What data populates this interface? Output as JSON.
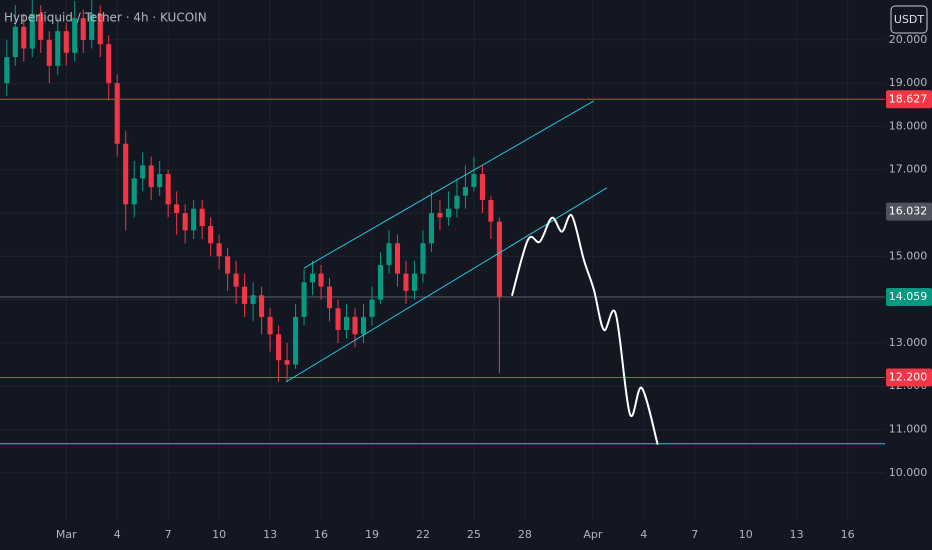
{
  "chart_data": {
    "type": "candlestick",
    "title": "Hyperliquid / Tether · 4h · KUCOIN",
    "currency": "USDT",
    "up_color": "#089981",
    "down_color": "#f23645",
    "grid": true,
    "xlim": [
      -2.9,
      49.2
    ],
    "ylim": [
      8.91,
      20.92
    ],
    "xticks": [
      {
        "value": 1,
        "label": "Mar"
      },
      4,
      7,
      10,
      13,
      16,
      19,
      22,
      25,
      28,
      {
        "value": 32,
        "label": "Apr"
      },
      {
        "value": 35,
        "label": "4"
      },
      {
        "value": 38,
        "label": "7"
      },
      {
        "value": 41,
        "label": "10"
      },
      {
        "value": 44,
        "label": "13"
      },
      {
        "value": 47,
        "label": "16"
      }
    ],
    "yticks": [
      {
        "value": 10,
        "label": "10.000"
      },
      {
        "value": 11,
        "label": "11.000"
      },
      {
        "value": 12,
        "label": "12.000"
      },
      {
        "value": 13,
        "label": "13.000"
      },
      {
        "value": 14,
        "label": "14.000"
      },
      {
        "value": 15,
        "label": "15.000"
      },
      {
        "value": 16,
        "label": "16.000"
      },
      {
        "value": 17,
        "label": "17.000"
      },
      {
        "value": 18,
        "label": "18.000"
      },
      {
        "value": 19,
        "label": "19.000"
      },
      {
        "value": 20,
        "label": "20.000"
      }
    ],
    "x": [
      -2.5,
      -2,
      -1.5,
      -1,
      -0.5,
      0,
      0.5,
      1,
      1.5,
      2,
      2.5,
      3,
      3.5,
      4,
      4.5,
      5,
      5.5,
      6,
      6.5,
      7,
      7.5,
      8,
      8.5,
      9,
      9.5,
      10,
      10.5,
      11,
      11.5,
      12,
      12.5,
      13,
      13.5,
      14,
      14.5,
      15,
      15.5,
      16,
      16.5,
      17,
      17.5,
      18,
      18.5,
      19,
      19.5,
      20,
      20.5,
      21,
      21.5,
      22,
      22.5,
      23,
      23.5,
      24,
      24.5,
      25,
      25.5,
      26,
      26.5
    ],
    "open": [
      19.0,
      19.6,
      20.3,
      19.8,
      20.6,
      20.0,
      19.4,
      20.2,
      19.7,
      20.5,
      20.0,
      20.6,
      19.9,
      19.0,
      17.6,
      16.2,
      16.8,
      17.1,
      16.6,
      16.9,
      16.2,
      16.0,
      15.6,
      16.1,
      15.7,
      15.3,
      15.0,
      14.6,
      14.3,
      13.9,
      14.1,
      13.6,
      13.2,
      12.6,
      12.5,
      13.6,
      14.4,
      14.6,
      14.3,
      13.8,
      13.3,
      13.6,
      13.2,
      13.6,
      14.0,
      14.8,
      15.3,
      14.6,
      14.2,
      14.6,
      15.3,
      16.0,
      15.9,
      16.1,
      16.4,
      16.6,
      16.9,
      16.3,
      15.8
    ],
    "high": [
      20.0,
      20.8,
      20.6,
      21.0,
      20.8,
      20.2,
      20.5,
      20.4,
      20.9,
      20.7,
      21.0,
      20.8,
      20.1,
      19.2,
      17.9,
      17.2,
      17.4,
      17.3,
      17.2,
      17.0,
      16.5,
      16.2,
      16.3,
      16.3,
      15.9,
      15.5,
      15.2,
      14.9,
      14.6,
      14.4,
      14.3,
      13.8,
      13.4,
      13.0,
      13.9,
      14.7,
      14.9,
      14.8,
      14.5,
      14.0,
      13.9,
      13.8,
      13.9,
      14.3,
      15.1,
      15.6,
      15.5,
      14.9,
      14.9,
      15.6,
      16.5,
      16.3,
      16.5,
      16.8,
      17.1,
      17.3,
      17.1,
      16.4,
      15.9
    ],
    "low": [
      18.7,
      19.4,
      19.5,
      19.6,
      19.7,
      19.0,
      19.2,
      19.4,
      19.5,
      19.7,
      19.8,
      19.6,
      18.6,
      17.3,
      15.6,
      15.9,
      16.5,
      16.3,
      16.4,
      15.9,
      15.5,
      15.3,
      15.4,
      15.4,
      15.0,
      14.7,
      14.2,
      13.9,
      13.6,
      13.5,
      13.2,
      12.8,
      12.1,
      12.1,
      12.4,
      13.4,
      14.1,
      14.0,
      13.5,
      13.0,
      13.1,
      12.9,
      13.0,
      13.4,
      13.9,
      14.6,
      14.3,
      13.9,
      14.0,
      14.4,
      15.1,
      15.6,
      15.7,
      15.9,
      16.1,
      16.5,
      16.0,
      15.4,
      12.3
    ],
    "close": [
      19.6,
      20.3,
      19.8,
      20.6,
      20.0,
      19.4,
      20.2,
      19.7,
      20.5,
      20.0,
      20.6,
      19.9,
      19.0,
      17.6,
      16.2,
      16.8,
      17.1,
      16.6,
      16.9,
      16.2,
      16.0,
      15.6,
      16.1,
      15.7,
      15.3,
      15.0,
      14.6,
      14.3,
      13.9,
      14.1,
      13.6,
      13.2,
      12.6,
      12.5,
      13.6,
      14.4,
      14.6,
      14.3,
      13.8,
      13.3,
      13.6,
      13.2,
      13.6,
      14.0,
      14.8,
      15.3,
      14.6,
      14.2,
      14.6,
      15.3,
      16.0,
      15.9,
      16.1,
      16.4,
      16.6,
      16.9,
      16.3,
      15.8,
      14.059
    ],
    "hlines": [
      {
        "value": 18.627,
        "color": "#f23645"
      },
      {
        "value": 14.059,
        "color": "#5d606b"
      },
      {
        "value": 12.2,
        "color": "#f23645"
      },
      {
        "value": 10.67,
        "color": "#26c6da"
      }
    ],
    "price_labels": [
      {
        "value": 18.627,
        "color": "#f23645"
      },
      {
        "value": 16.032,
        "color": "#50535e"
      },
      {
        "value": 14.059,
        "color": "#089981"
      },
      {
        "value": 12.2,
        "label": "12.200",
        "color": "#f23645"
      }
    ],
    "trendlines": [
      {
        "x": [
          15.0,
          32.06
        ],
        "y": [
          14.73,
          18.59
        ],
        "color": "#26c6da"
      },
      {
        "x": [
          13.94,
          32.82
        ],
        "y": [
          12.1,
          16.58
        ],
        "color": "#26c6da"
      }
    ],
    "projection": {
      "color": "#ffffff",
      "x": [
        27.24,
        28.18,
        28.88,
        29.59,
        30.18,
        30.76,
        31.47,
        32.06,
        32.65,
        33.35,
        34.18,
        34.88,
        35.82
      ],
      "y": [
        14.09,
        15.38,
        15.34,
        15.89,
        15.57,
        15.94,
        14.92,
        14.23,
        13.3,
        13.67,
        11.36,
        11.96,
        10.65
      ]
    }
  }
}
